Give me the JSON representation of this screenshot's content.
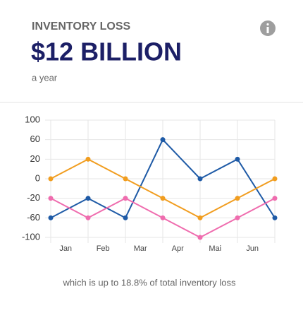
{
  "header": {
    "kicker": "INVENTORY LOSS",
    "headline": "$12 BILLION",
    "sub": "a year"
  },
  "chart_data": {
    "type": "line",
    "categories": [
      "Jan",
      "Feb",
      "Mar",
      "Apr",
      "Mai",
      "Jun",
      null
    ],
    "series": [
      {
        "color": "#1e5aa6",
        "values": [
          -60,
          -20,
          -60,
          60,
          0,
          20,
          -60
        ]
      },
      {
        "color": "#f19d1f",
        "values": [
          0,
          20,
          0,
          -20,
          -60,
          -20,
          0
        ]
      },
      {
        "color": "#ef6cae",
        "values": [
          -20,
          -60,
          -20,
          -60,
          -100,
          -60,
          -20
        ]
      }
    ],
    "ylim": [
      -100,
      100
    ],
    "yticks": [
      100,
      60,
      20,
      0,
      -20,
      -60,
      -100
    ],
    "grid": true
  },
  "footer": {
    "note": "which is up to 18.8% of total inventory loss"
  }
}
